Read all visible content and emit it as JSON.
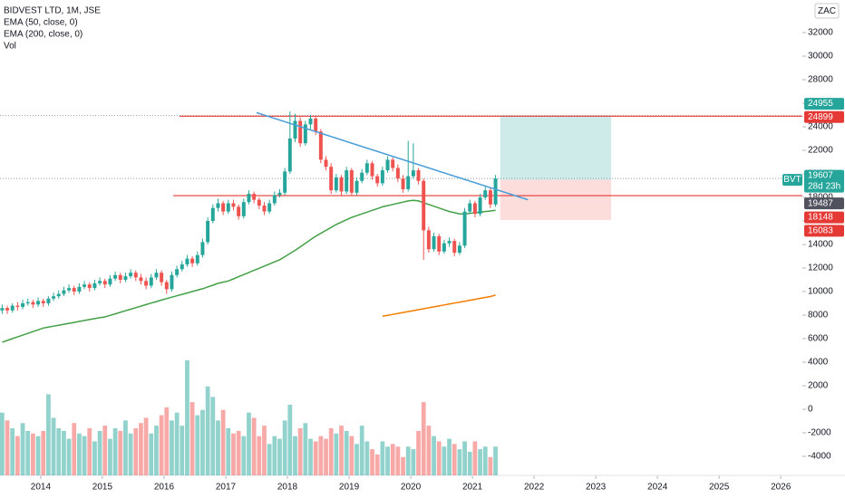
{
  "chart_data": {
    "type": "candlestick",
    "title": "BIDVEST LTD, 1M, JSE",
    "currency": "ZAC",
    "symbol": "BVT",
    "countdown": "28d 23h",
    "xlim": [
      2013.34,
      2026.35
    ],
    "xticks": [
      2014,
      2015,
      2016,
      2017,
      2018,
      2019,
      2020,
      2021,
      2022,
      2023,
      2024,
      2025,
      2026
    ],
    "ylim": [
      -5615,
      34769
    ],
    "yticks": [
      32000,
      30000,
      28000,
      26000,
      24000,
      22000,
      20000,
      18000,
      16000,
      14000,
      12000,
      10000,
      8000,
      6000,
      4000,
      2000,
      0,
      -2000,
      -4000
    ],
    "up_color": "#26a69a",
    "down_color": "#ef5350",
    "x": [
      "2013-05",
      "2013-06",
      "2013-07",
      "2013-08",
      "2013-09",
      "2013-10",
      "2013-11",
      "2013-12",
      "2014-01",
      "2014-02",
      "2014-03",
      "2014-04",
      "2014-05",
      "2014-06",
      "2014-07",
      "2014-08",
      "2014-09",
      "2014-10",
      "2014-11",
      "2014-12",
      "2015-01",
      "2015-02",
      "2015-03",
      "2015-04",
      "2015-05",
      "2015-06",
      "2015-07",
      "2015-08",
      "2015-09",
      "2015-10",
      "2015-11",
      "2015-12",
      "2016-01",
      "2016-02",
      "2016-03",
      "2016-04",
      "2016-05",
      "2016-06",
      "2016-07",
      "2016-08",
      "2016-09",
      "2016-10",
      "2016-11",
      "2016-12",
      "2017-01",
      "2017-02",
      "2017-03",
      "2017-04",
      "2017-05",
      "2017-06",
      "2017-07",
      "2017-08",
      "2017-09",
      "2017-10",
      "2017-11",
      "2017-12",
      "2018-01",
      "2018-02",
      "2018-03",
      "2018-04",
      "2018-05",
      "2018-06",
      "2018-07",
      "2018-08",
      "2018-09",
      "2018-10",
      "2018-11",
      "2018-12",
      "2019-01",
      "2019-02",
      "2019-03",
      "2019-04",
      "2019-05",
      "2019-06",
      "2019-07",
      "2019-08",
      "2019-09",
      "2019-10",
      "2019-11",
      "2019-12",
      "2020-01",
      "2020-02",
      "2020-03",
      "2020-04",
      "2020-05",
      "2020-06",
      "2020-07",
      "2020-08",
      "2020-09",
      "2020-10",
      "2020-11",
      "2020-12",
      "2021-01",
      "2021-02",
      "2021-03",
      "2021-04",
      "2021-05"
    ],
    "candles": [
      [
        8400,
        8900,
        8100,
        8600
      ],
      [
        8600,
        8800,
        8100,
        8400
      ],
      [
        8400,
        9000,
        8200,
        8800
      ],
      [
        8800,
        9100,
        8400,
        8700
      ],
      [
        8700,
        9300,
        8500,
        9000
      ],
      [
        9000,
        9400,
        8800,
        9100
      ],
      [
        9100,
        9300,
        8600,
        8900
      ],
      [
        8900,
        9500,
        8700,
        9200
      ],
      [
        9200,
        9400,
        8700,
        9000
      ],
      [
        9000,
        9600,
        8800,
        9400
      ],
      [
        9400,
        9900,
        9200,
        9600
      ],
      [
        9600,
        10100,
        9400,
        9800
      ],
      [
        9800,
        10400,
        9600,
        10100
      ],
      [
        10100,
        10600,
        9900,
        10300
      ],
      [
        10300,
        10500,
        9700,
        10000
      ],
      [
        10000,
        10700,
        9800,
        10400
      ],
      [
        10400,
        10900,
        10200,
        10600
      ],
      [
        10600,
        10800,
        10000,
        10300
      ],
      [
        10300,
        11000,
        10100,
        10700
      ],
      [
        10700,
        11200,
        10500,
        10900
      ],
      [
        10900,
        11100,
        10300,
        10600
      ],
      [
        10600,
        11400,
        10400,
        11100
      ],
      [
        11100,
        11700,
        10900,
        11400
      ],
      [
        11400,
        11600,
        10700,
        11000
      ],
      [
        11000,
        11600,
        10800,
        11300
      ],
      [
        11300,
        11900,
        11100,
        11600
      ],
      [
        11600,
        11800,
        10900,
        11200
      ],
      [
        11200,
        11500,
        10600,
        10900
      ],
      [
        10900,
        11200,
        10200,
        10500
      ],
      [
        10500,
        11500,
        10300,
        11200
      ],
      [
        11200,
        11900,
        11000,
        11600
      ],
      [
        11600,
        11800,
        10500,
        10800
      ],
      [
        10800,
        11000,
        9800,
        10200
      ],
      [
        10200,
        11700,
        10000,
        11400
      ],
      [
        11400,
        12200,
        11200,
        11900
      ],
      [
        11900,
        12600,
        11700,
        12300
      ],
      [
        12300,
        13100,
        12100,
        12800
      ],
      [
        12800,
        13000,
        12100,
        12400
      ],
      [
        12400,
        13400,
        12200,
        13100
      ],
      [
        13100,
        14500,
        12900,
        14200
      ],
      [
        14200,
        16300,
        14000,
        16000
      ],
      [
        16000,
        17400,
        15800,
        17100
      ],
      [
        17100,
        17900,
        16800,
        17500
      ],
      [
        17500,
        17700,
        16500,
        16800
      ],
      [
        16800,
        17800,
        16600,
        17500
      ],
      [
        17500,
        17800,
        16900,
        17200
      ],
      [
        17200,
        17400,
        16100,
        16400
      ],
      [
        16400,
        17900,
        16200,
        17600
      ],
      [
        17600,
        18600,
        17400,
        18300
      ],
      [
        18300,
        18500,
        17500,
        17800
      ],
      [
        17800,
        18000,
        17000,
        17300
      ],
      [
        17300,
        17600,
        16500,
        16800
      ],
      [
        16800,
        17800,
        16600,
        17500
      ],
      [
        17500,
        18500,
        17300,
        18200
      ],
      [
        18200,
        18700,
        18000,
        18400
      ],
      [
        18400,
        20500,
        18200,
        20200
      ],
      [
        20200,
        25300,
        20000,
        23000
      ],
      [
        23000,
        25100,
        22700,
        24500
      ],
      [
        24500,
        24800,
        22300,
        22600
      ],
      [
        22600,
        24500,
        22400,
        24200
      ],
      [
        24200,
        25000,
        23800,
        24700
      ],
      [
        24700,
        24900,
        23300,
        23600
      ],
      [
        23600,
        23800,
        20900,
        21200
      ],
      [
        21200,
        21500,
        20300,
        20600
      ],
      [
        20600,
        20900,
        18300,
        18600
      ],
      [
        18600,
        20000,
        18400,
        19700
      ],
      [
        19700,
        19900,
        18200,
        18500
      ],
      [
        18500,
        20600,
        18300,
        20300
      ],
      [
        20300,
        20500,
        18100,
        18400
      ],
      [
        18400,
        19700,
        18200,
        19400
      ],
      [
        19400,
        20400,
        19200,
        20100
      ],
      [
        20100,
        21200,
        19900,
        20900
      ],
      [
        20900,
        21100,
        19500,
        19800
      ],
      [
        19800,
        20000,
        18900,
        19200
      ],
      [
        19200,
        20600,
        19000,
        20300
      ],
      [
        20300,
        21500,
        20100,
        21200
      ],
      [
        21200,
        21400,
        20200,
        20500
      ],
      [
        20500,
        20800,
        19300,
        19600
      ],
      [
        19600,
        19900,
        18400,
        18700
      ],
      [
        18700,
        22800,
        18500,
        19800
      ],
      [
        19800,
        22600,
        19600,
        20300
      ],
      [
        20300,
        20500,
        19100,
        19400
      ],
      [
        19400,
        19600,
        12700,
        15200
      ],
      [
        15200,
        15500,
        13300,
        13600
      ],
      [
        13600,
        15000,
        13400,
        14700
      ],
      [
        14700,
        14900,
        13100,
        13400
      ],
      [
        13400,
        14400,
        13200,
        14100
      ],
      [
        14100,
        14600,
        13800,
        14300
      ],
      [
        14300,
        14500,
        13000,
        13300
      ],
      [
        13300,
        14200,
        13100,
        13900
      ],
      [
        13900,
        17100,
        13700,
        16800
      ],
      [
        16800,
        17800,
        16600,
        17500
      ],
      [
        17500,
        17700,
        16300,
        16600
      ],
      [
        16600,
        18300,
        16400,
        18000
      ],
      [
        18000,
        18900,
        17800,
        18600
      ],
      [
        18600,
        18800,
        17100,
        17400
      ],
      [
        17400,
        19900,
        17200,
        19607
      ]
    ],
    "volume_name": "Vol",
    "volume_ylim": [
      0,
      4500
    ],
    "volume": [
      2400,
      2100,
      1800,
      1500,
      2000,
      1700,
      1600,
      1500,
      1700,
      3100,
      2200,
      1800,
      1700,
      1400,
      2000,
      1600,
      1500,
      1800,
      1300,
      1700,
      1900,
      1400,
      1800,
      1700,
      2100,
      1600,
      1800,
      2000,
      2200,
      1600,
      1900,
      2300,
      2600,
      2100,
      2400,
      1900,
      4400,
      2800,
      2300,
      2500,
      3400,
      3000,
      2100,
      2500,
      1800,
      1600,
      1700,
      1500,
      2400,
      2200,
      1500,
      1900,
      1200,
      1500,
      1400,
      2100,
      2700,
      1500,
      1800,
      2000,
      1400,
      1300,
      1500,
      1400,
      1800,
      1600,
      1900,
      1700,
      1500,
      1200,
      1900,
      1300,
      1000,
      800,
      1300,
      1100,
      1200,
      1100,
      700,
      1100,
      1000,
      1700,
      2800,
      1900,
      1500,
      1300,
      1100,
      1400,
      1200,
      1000,
      1300,
      900,
      1300,
      1000,
      1100,
      700,
      1100
    ],
    "series": [
      {
        "name": "EMA (50, close, 0)",
        "color": "#43a047",
        "values": [
          5700,
          5850,
          6000,
          6150,
          6300,
          6450,
          6600,
          6750,
          6900,
          6980,
          7060,
          7140,
          7220,
          7300,
          7380,
          7460,
          7540,
          7620,
          7700,
          7780,
          7850,
          7980,
          8110,
          8240,
          8370,
          8500,
          8630,
          8760,
          8890,
          9020,
          9150,
          9280,
          9400,
          9520,
          9640,
          9760,
          9880,
          10000,
          10120,
          10240,
          10390,
          10540,
          10700,
          10800,
          10900,
          11080,
          11260,
          11440,
          11620,
          11800,
          11980,
          12160,
          12340,
          12520,
          12700,
          12960,
          13230,
          13500,
          13800,
          14100,
          14400,
          14700,
          14950,
          15200,
          15450,
          15700,
          15900,
          16100,
          16300,
          16450,
          16600,
          16750,
          16900,
          17050,
          17200,
          17300,
          17400,
          17500,
          17600,
          17700,
          17750,
          17700,
          17550,
          17400,
          17250,
          17100,
          16950,
          16800,
          16700,
          16600,
          16600,
          16650,
          16700,
          16750,
          16800,
          16850,
          16900
        ]
      },
      {
        "name": "EMA (200, close, 0)",
        "color": "#f57c00",
        "values": [
          null,
          null,
          null,
          null,
          null,
          null,
          null,
          null,
          null,
          null,
          null,
          null,
          null,
          null,
          null,
          null,
          null,
          null,
          null,
          null,
          null,
          null,
          null,
          null,
          null,
          null,
          null,
          null,
          null,
          null,
          null,
          null,
          null,
          null,
          null,
          null,
          null,
          null,
          null,
          null,
          null,
          null,
          null,
          null,
          null,
          null,
          null,
          null,
          null,
          null,
          null,
          null,
          null,
          null,
          null,
          null,
          null,
          null,
          null,
          null,
          null,
          null,
          null,
          null,
          null,
          null,
          null,
          null,
          null,
          null,
          null,
          null,
          null,
          null,
          7900,
          7980,
          8060,
          8140,
          8220,
          8300,
          8380,
          8460,
          8540,
          8620,
          8700,
          8780,
          8860,
          8940,
          9020,
          9100,
          9180,
          9260,
          9340,
          9420,
          9500,
          9580,
          9700
        ]
      }
    ],
    "trendline": {
      "x": [
        2017.5,
        2021.9
      ],
      "y": [
        25200,
        17800
      ],
      "color": "#4a9fd8"
    },
    "levels": [
      {
        "value": 24899,
        "x_start": 2016.25,
        "color": "#e53935"
      },
      {
        "value": 18148,
        "x_start": 2016.15,
        "color": "#e53935"
      }
    ],
    "position": {
      "x": [
        2021.45,
        2023.25
      ],
      "target": 24955,
      "entry": 19487,
      "stop": 16083
    }
  }
}
